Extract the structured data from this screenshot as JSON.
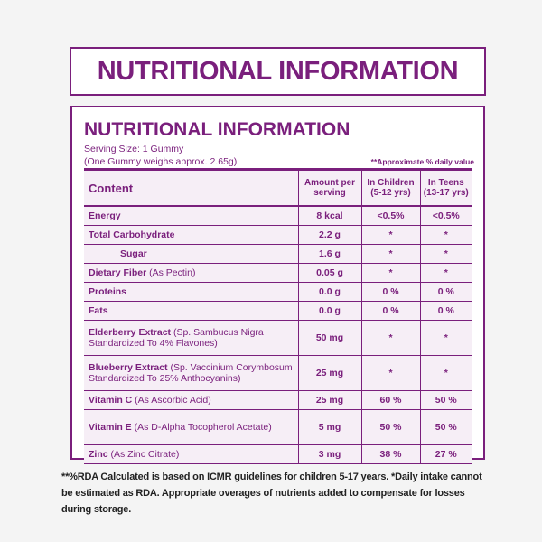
{
  "header": {
    "title": "NUTRITIONAL INFORMATION"
  },
  "panel": {
    "title": "NUTRITIONAL INFORMATION",
    "serving_size": "Serving Size: 1 Gummy",
    "serving_weight": "(One Gummy weighs approx. 2.65g)",
    "daily_note": "**Approximate % daily value"
  },
  "table": {
    "columns": [
      [
        "Content"
      ],
      [
        "Amount per",
        "serving"
      ],
      [
        "In Children",
        "(5-12 yrs)"
      ],
      [
        "In Teens",
        "(13-17 yrs)"
      ]
    ],
    "rows": [
      {
        "name": "Energy",
        "amount": "8 kcal",
        "children": "<0.5%",
        "teens": "<0.5%"
      },
      {
        "name": "Total Carbohydrate",
        "amount": "2.2 g",
        "children": "*",
        "teens": "*"
      },
      {
        "name": "Sugar",
        "amount": "1.6 g",
        "children": "*",
        "teens": "*",
        "sub": true
      },
      {
        "name": "Dietary Fiber",
        "note": "(As Pectin)",
        "amount": "0.05 g",
        "children": "*",
        "teens": "*"
      },
      {
        "name": "Proteins",
        "amount": "0.0 g",
        "children": "0 %",
        "teens": "0 %"
      },
      {
        "name": "Fats",
        "amount": "0.0 g",
        "children": "0 %",
        "teens": "0 %"
      },
      {
        "name": "Elderberry Extract",
        "note": "(Sp. Sambucus Nigra Standardized To 4% Flavones)",
        "amount": "50 mg",
        "children": "*",
        "teens": "*"
      },
      {
        "name": "Blueberry Extract",
        "note": "(Sp. Vaccinium Corymbosum Standardized To 25% Anthocyanins)",
        "amount": "25 mg",
        "children": "*",
        "teens": "*"
      },
      {
        "name": "Vitamin C",
        "note": "(As Ascorbic Acid)",
        "amount": "25 mg",
        "children": "60 %",
        "teens": "50 %"
      },
      {
        "name": "Vitamin E",
        "note": "(As D-Alpha Tocopherol Acetate)",
        "amount": "5 mg",
        "children": "50 %",
        "teens": "50 %"
      },
      {
        "name": "Zinc",
        "note": "(As Zinc Citrate)",
        "amount": "3 mg",
        "children": "38 %",
        "teens": "27 %"
      }
    ]
  },
  "footer": {
    "text": "**%RDA Calculated is based on ICMR guidelines for children 5-17 years. *Daily intake cannot be estimated as RDA. Appropriate overages of nutrients added to compensate for losses during storage."
  }
}
